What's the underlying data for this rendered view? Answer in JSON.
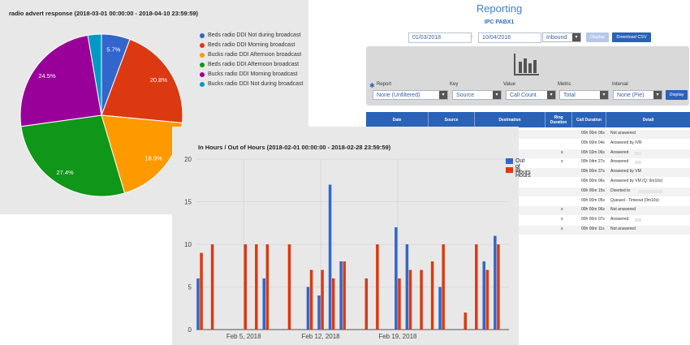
{
  "reporting": {
    "title": "Reporting",
    "subtitle": "IPC PABX1",
    "date_from": "01/03/2018",
    "date_to": "10/04/2018",
    "direction": "Inbound",
    "display_button": "Display",
    "download_button": "Download CSV",
    "filters": {
      "report_label": "Report",
      "report_value": "None (Unfiltered)",
      "key_label": "Key",
      "key_value": "Source",
      "value_label": "Value",
      "value_value": "Call Count",
      "metric_label": "Metric",
      "metric_value": "Total",
      "interval_label": "Interval",
      "interval_value": "None (Pie)",
      "display_button": "Display"
    },
    "table": {
      "columns": [
        "Date",
        "Source",
        "Destination",
        "Ring Duration",
        "Call Duration",
        "Detail"
      ],
      "rows": [
        {
          "prefix": "",
          "duration": "00h 00m 06s",
          "detail": "Not answered"
        },
        {
          "prefix": "",
          "duration": "00h 00m 04s",
          "detail": "Answered by IVR"
        },
        {
          "prefix": "s",
          "duration": "00h 02m 06s",
          "detail": "Answered"
        },
        {
          "prefix": "s",
          "duration": "00h 04m 27s",
          "detail": "Answered"
        },
        {
          "prefix": "",
          "duration": "00h 00m 37s",
          "detail": "Answered by VM"
        },
        {
          "prefix": "",
          "duration": "00h 00m 06s",
          "detail": "Answered by VM (Q: 0m10s)"
        },
        {
          "prefix": "",
          "duration": "00h 00m 15s",
          "detail": "Diverted to"
        },
        {
          "prefix": "",
          "duration": "00h 00m 05s",
          "detail": "Queued - Timeout (0m10s)"
        },
        {
          "prefix": "s",
          "duration": "00h 00m 06s",
          "detail": "Not answered"
        },
        {
          "prefix": "s",
          "duration": "00h 00m 07s",
          "detail": "Answered"
        },
        {
          "prefix": "s",
          "duration": "00h 00m 11s",
          "detail": "Not answered"
        }
      ]
    }
  },
  "chart_data": [
    {
      "type": "pie",
      "title": "radio advert response (2018-03-01 00:00:00 - 2018-04-10 23:59:59)",
      "legend": "right",
      "slices": [
        {
          "label": "Beds radio DDI Not during broadcast",
          "value": 5.7,
          "color": "#3366cc"
        },
        {
          "label": "Beds radio DDI Morning broadcast",
          "value": 20.8,
          "color": "#dc3912"
        },
        {
          "label": "Bucks radio DDI Afternoon broadcast",
          "value": 18.9,
          "color": "#ff9900"
        },
        {
          "label": "Beds radio DDI Afternoon broadcast",
          "value": 27.4,
          "color": "#109618"
        },
        {
          "label": "Bucks radio DDI Morning broadcast",
          "value": 24.5,
          "color": "#990099"
        },
        {
          "label": "Bucks radio DDI Not during broadcast",
          "value": 2.7,
          "color": "#0099c6"
        }
      ],
      "slice_labels": [
        "5.7%",
        "20.8%",
        "18.9%",
        "27.4%",
        "24.5%",
        ""
      ]
    },
    {
      "type": "bar",
      "title": "In Hours / Out of Hours (2018-02-01 00:00:00 - 2018-02-28 23:59:59)",
      "ylim": [
        0,
        20
      ],
      "yticks": [
        0,
        5,
        10,
        15,
        20
      ],
      "grid": true,
      "legend": "top-right",
      "x_tick_labels": [
        {
          "label": "Feb 5, 2018",
          "day": 5
        },
        {
          "label": "Feb 12, 2018",
          "day": 12
        },
        {
          "label": "Feb 19, 2018",
          "day": 19
        }
      ],
      "days": [
        1,
        2,
        3,
        4,
        5,
        6,
        7,
        8,
        9,
        10,
        11,
        12,
        13,
        14,
        15,
        16,
        17,
        18,
        19,
        20,
        21,
        22,
        23,
        24,
        25,
        26,
        27,
        28
      ],
      "series": [
        {
          "name": "Out of Hours",
          "color": "#3366cc",
          "values": [
            6,
            0,
            0,
            0,
            0,
            0,
            6,
            0,
            0,
            0,
            5,
            4,
            17,
            8,
            0,
            0,
            0,
            0,
            12,
            10,
            0,
            0,
            5,
            0,
            0,
            0,
            8,
            11
          ]
        },
        {
          "name": "In Hours",
          "color": "#dc3912",
          "values": [
            9,
            10,
            0,
            0,
            10,
            10,
            10,
            0,
            10,
            0,
            7,
            7,
            6,
            8,
            0,
            6,
            10,
            0,
            6,
            7,
            7,
            8,
            10,
            0,
            2,
            10,
            7,
            10
          ]
        }
      ]
    }
  ]
}
